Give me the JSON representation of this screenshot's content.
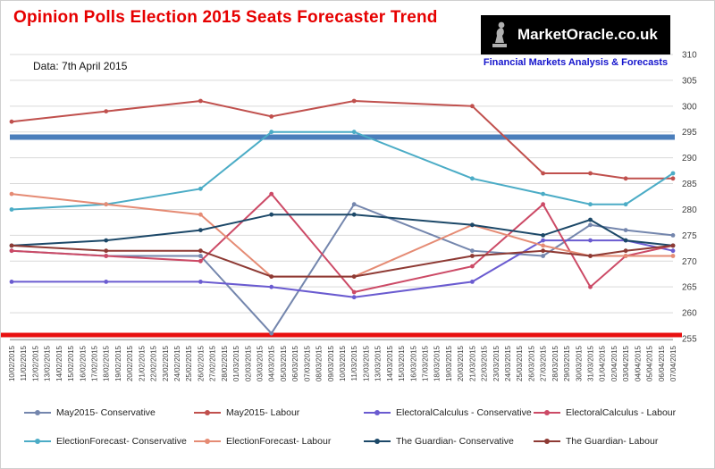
{
  "page": {
    "title": "Opinion Polls Election 2015 Seats Forecaster Trend",
    "title_color": "#e60000",
    "data_note": "Data: 7th April 2015",
    "logo": {
      "text": "MarketOracle.co.uk",
      "tagline": "Financial Markets Analysis & Forecasts",
      "tagline_color": "#1414cc",
      "icon": "thinker-statue-icon"
    }
  },
  "chart_data": {
    "type": "line",
    "title": "Opinion Polls Election 2015 Seats Forecaster Trend",
    "xlabel": "",
    "ylabel": "",
    "ylim": [
      255,
      310
    ],
    "ytick_step": 5,
    "grid": true,
    "legend_position": "bottom",
    "x_ticks": [
      "10/02/2015",
      "11/02/2015",
      "12/02/2015",
      "13/02/2015",
      "14/02/2015",
      "15/02/2015",
      "16/02/2015",
      "17/02/2015",
      "18/02/2015",
      "19/02/2015",
      "20/02/2015",
      "21/02/2015",
      "22/02/2015",
      "23/02/2015",
      "24/02/2015",
      "25/02/2015",
      "26/02/2015",
      "27/02/2015",
      "28/02/2015",
      "01/03/2015",
      "02/03/2015",
      "03/03/2015",
      "04/03/2015",
      "05/03/2015",
      "06/03/2015",
      "07/03/2015",
      "08/03/2015",
      "09/03/2015",
      "10/03/2015",
      "11/03/2015",
      "12/03/2015",
      "13/03/2015",
      "14/03/2015",
      "15/03/2015",
      "16/03/2015",
      "17/03/2015",
      "18/03/2015",
      "19/03/2015",
      "20/03/2015",
      "21/03/2015",
      "22/03/2015",
      "23/03/2015",
      "24/03/2015",
      "25/03/2015",
      "26/03/2015",
      "27/03/2015",
      "28/03/2015",
      "29/03/2015",
      "30/03/2015",
      "31/03/2015",
      "01/04/2015",
      "02/04/2015",
      "03/04/2015",
      "04/04/2015",
      "05/04/2015",
      "06/04/2015",
      "07/04/2015"
    ],
    "point_dates": [
      "10/02/2015",
      "18/02/2015",
      "26/02/2015",
      "04/03/2015",
      "11/03/2015",
      "21/03/2015",
      "27/03/2015",
      "31/03/2015",
      "03/04/2015",
      "07/04/2015"
    ],
    "point_indices": [
      0,
      8,
      16,
      22,
      29,
      39,
      45,
      49,
      52,
      56
    ],
    "reference_lines": [
      {
        "name": "blue-threshold-line",
        "value": 294,
        "color": "#4a7ebb",
        "width": 6,
        "span": "plot"
      },
      {
        "name": "red-floor-line",
        "value": 255.7,
        "color": "#e81010",
        "width": 5,
        "span": "full"
      }
    ],
    "series": [
      {
        "name": "May2015- Conservative",
        "color": "#7486ad",
        "values": [
          272,
          271,
          271,
          256,
          281,
          272,
          271,
          277,
          276,
          275
        ]
      },
      {
        "name": "May2015- Labour",
        "color": "#c0504d",
        "values": [
          297,
          299,
          301,
          298,
          301,
          300,
          287,
          287,
          286,
          286
        ]
      },
      {
        "name": "ElectoralCalculus - Conservative",
        "color": "#6a5bd0",
        "values": [
          266,
          266,
          266,
          265,
          263,
          266,
          274,
          274,
          274,
          272
        ]
      },
      {
        "name": "ElectoralCalculus - Labour",
        "color": "#cc4a66",
        "values": [
          272,
          271,
          270,
          283,
          264,
          269,
          281,
          265,
          271,
          273
        ]
      },
      {
        "name": "ElectionForecast- Conservative",
        "color": "#4bacc6",
        "values": [
          280,
          281,
          284,
          295,
          295,
          286,
          283,
          281,
          281,
          287
        ]
      },
      {
        "name": "ElectionForecast- Labour",
        "color": "#e58b74",
        "values": [
          283,
          281,
          279,
          267,
          267,
          277,
          273,
          271,
          271,
          271
        ]
      },
      {
        "name": "The Guardian- Conservative",
        "color": "#1c4868",
        "values": [
          273,
          274,
          276,
          279,
          279,
          277,
          275,
          278,
          274,
          273
        ]
      },
      {
        "name": "The Guardian- Labour",
        "color": "#8e3a34",
        "values": [
          273,
          272,
          272,
          267,
          267,
          271,
          272,
          271,
          272,
          273
        ]
      }
    ]
  }
}
